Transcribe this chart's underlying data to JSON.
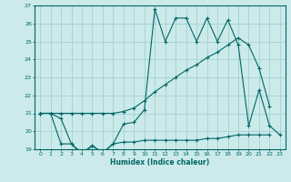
{
  "xlabel": "Humidex (Indice chaleur)",
  "bg_color": "#cceaea",
  "grid_color": "#99cccc",
  "line_color": "#006666",
  "xlim": [
    -0.5,
    23.5
  ],
  "ylim": [
    19,
    27
  ],
  "xticks": [
    0,
    1,
    2,
    3,
    4,
    5,
    6,
    7,
    8,
    9,
    10,
    11,
    12,
    13,
    14,
    15,
    16,
    17,
    18,
    19,
    20,
    21,
    22,
    23
  ],
  "yticks": [
    19,
    20,
    21,
    22,
    23,
    24,
    25,
    26,
    27
  ],
  "line1_x": [
    0,
    1,
    2,
    3,
    4,
    5,
    6,
    7,
    8,
    9,
    10,
    11,
    12,
    13,
    14,
    15,
    16,
    17,
    18,
    19,
    20,
    21,
    22
  ],
  "line1_y": [
    21.0,
    21.0,
    19.3,
    19.3,
    18.7,
    19.2,
    18.8,
    19.3,
    19.4,
    19.4,
    19.5,
    19.5,
    19.5,
    19.5,
    19.5,
    19.5,
    19.6,
    19.6,
    19.7,
    19.8,
    19.8,
    19.8,
    19.8
  ],
  "line2_x": [
    0,
    1,
    2,
    3,
    4,
    5,
    6,
    7,
    8,
    9,
    10,
    11,
    12,
    13,
    14,
    15,
    16,
    17,
    18,
    19,
    20,
    21,
    22,
    23
  ],
  "line2_y": [
    21.0,
    21.0,
    20.7,
    19.3,
    18.8,
    19.2,
    18.8,
    19.3,
    20.4,
    20.5,
    21.2,
    26.8,
    25.0,
    26.3,
    26.3,
    25.0,
    26.3,
    25.0,
    26.2,
    24.8,
    20.3,
    22.3,
    20.3,
    19.8
  ],
  "line3_x": [
    0,
    1,
    2,
    3,
    4,
    5,
    6,
    7,
    8,
    9,
    10,
    11,
    12,
    13,
    14,
    15,
    16,
    17,
    18,
    19,
    20,
    21,
    22
  ],
  "line3_y": [
    21.0,
    21.0,
    21.0,
    21.0,
    21.0,
    21.0,
    21.0,
    21.0,
    21.1,
    21.3,
    21.7,
    22.2,
    22.6,
    23.0,
    23.4,
    23.7,
    24.1,
    24.4,
    24.8,
    25.2,
    24.8,
    23.5,
    21.4
  ]
}
